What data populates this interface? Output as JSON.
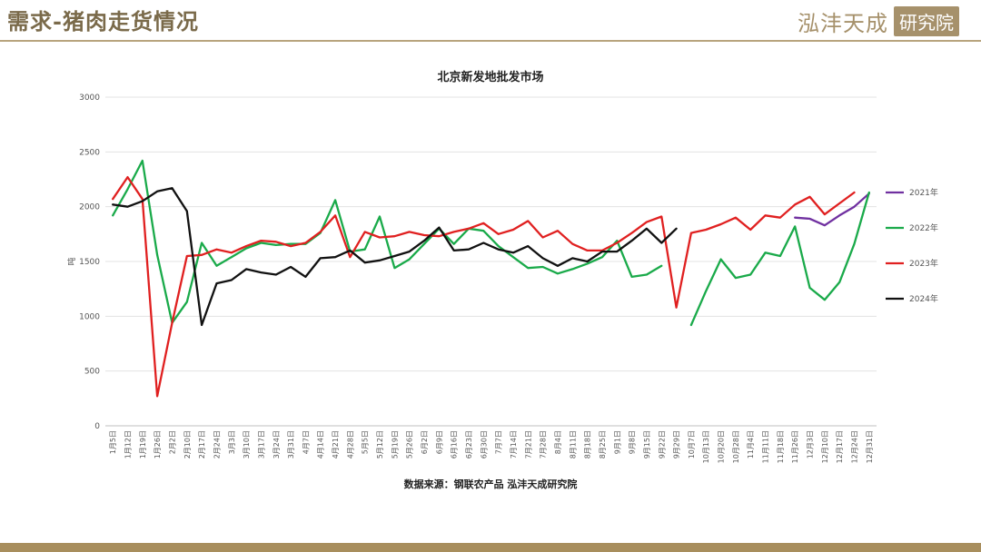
{
  "header": {
    "title": "需求-猪肉走货情况",
    "brand_name": "泓沣天成",
    "brand_box": "研究院"
  },
  "source": "数据来源：钢联农产品 泓沣天成研究院",
  "chart_data": {
    "type": "line",
    "title": "北京新发地批发市场",
    "ylabel": "吨",
    "ylim": [
      0,
      3000
    ],
    "yticks": [
      0,
      500,
      1000,
      1500,
      2000,
      2500,
      3000
    ],
    "grid": true,
    "legend_position": "right",
    "x": [
      "1月5日",
      "1月12日",
      "1月19日",
      "1月26日",
      "2月2日",
      "2月10日",
      "2月17日",
      "2月24日",
      "3月3日",
      "3月10日",
      "3月17日",
      "3月24日",
      "3月31日",
      "4月7日",
      "4月14日",
      "4月21日",
      "4月28日",
      "5月5日",
      "5月12日",
      "5月19日",
      "5月26日",
      "6月2日",
      "6月9日",
      "6月16日",
      "6月23日",
      "6月30日",
      "7月7日",
      "7月14日",
      "7月21日",
      "7月28日",
      "8月4日",
      "8月11日",
      "8月18日",
      "8月25日",
      "9月1日",
      "9月8日",
      "9月15日",
      "9月22日",
      "9月29日",
      "10月7日",
      "10月13日",
      "10月20日",
      "10月28日",
      "11月4日",
      "11月11日",
      "11月18日",
      "11月26日",
      "12月3日",
      "12月10日",
      "12月17日",
      "12月24日",
      "12月31日"
    ],
    "series": [
      {
        "name": "2021年",
        "color": "#7030a0",
        "values": [
          null,
          null,
          null,
          null,
          null,
          null,
          null,
          null,
          null,
          null,
          null,
          null,
          null,
          null,
          null,
          null,
          null,
          null,
          null,
          null,
          null,
          null,
          null,
          null,
          null,
          null,
          null,
          null,
          null,
          null,
          null,
          null,
          null,
          null,
          null,
          null,
          null,
          null,
          null,
          null,
          null,
          null,
          null,
          null,
          null,
          null,
          1900,
          1890,
          1830,
          1920,
          2000,
          2120
        ]
      },
      {
        "name": "2022年",
        "color": "#1aaa4a",
        "values": [
          1920,
          2160,
          2420,
          1560,
          940,
          1130,
          1670,
          1460,
          1540,
          1620,
          1670,
          1650,
          1660,
          1660,
          1760,
          2060,
          1590,
          1610,
          1910,
          1440,
          1520,
          1660,
          1800,
          1660,
          1800,
          1780,
          1640,
          1540,
          1440,
          1450,
          1390,
          1430,
          1480,
          1540,
          1690,
          1360,
          1380,
          1460,
          null,
          920,
          1230,
          1520,
          1350,
          1380,
          1580,
          1550,
          1820,
          1260,
          1150,
          1310,
          1660,
          2130
        ]
      },
      {
        "name": "2023年",
        "color": "#e02020",
        "values": [
          2070,
          2270,
          2070,
          270,
          940,
          1550,
          1560,
          1610,
          1580,
          1640,
          1690,
          1680,
          1640,
          1670,
          1770,
          1920,
          1540,
          1770,
          1720,
          1730,
          1770,
          1740,
          1730,
          1770,
          1800,
          1850,
          1750,
          1790,
          1870,
          1720,
          1780,
          1660,
          1600,
          1600,
          1670,
          1760,
          1860,
          1910,
          1080,
          1760,
          1790,
          1840,
          1900,
          1790,
          1920,
          1900,
          2020,
          2090,
          1930,
          2030,
          2130,
          null
        ]
      },
      {
        "name": "2024年",
        "color": "#111111",
        "values": [
          2020,
          2000,
          2050,
          2140,
          2170,
          1960,
          920,
          1300,
          1330,
          1430,
          1400,
          1380,
          1450,
          1360,
          1530,
          1540,
          1600,
          1490,
          1510,
          1550,
          1590,
          1690,
          1810,
          1600,
          1610,
          1670,
          1610,
          1580,
          1640,
          1530,
          1460,
          1530,
          1500,
          1590,
          1590,
          1690,
          1800,
          1670,
          1800,
          null,
          null,
          null,
          null,
          null,
          null,
          null,
          null,
          null,
          null,
          null,
          null,
          null
        ]
      }
    ]
  }
}
